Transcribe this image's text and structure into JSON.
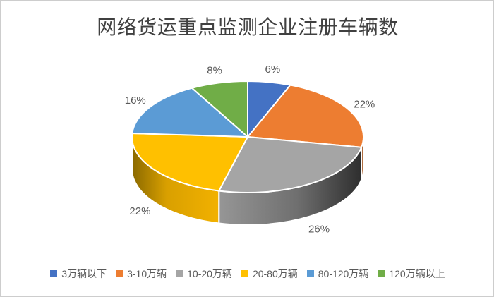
{
  "title": "网络货运重点监测企业注册车辆数",
  "colors": {
    "title_text": "#404040",
    "label_text": "#595959",
    "border": "#cdcdcd",
    "background": "#ffffff",
    "separator": "#ffffff"
  },
  "chart_data": {
    "type": "pie",
    "title": "网络货运重点监测企业注册车辆数",
    "unit": "percent",
    "effect_3d": true,
    "start_angle_deg": 0,
    "direction": "clockwise",
    "data_labels": "percent_outside",
    "legend_position": "bottom",
    "labels": [
      "3万辆以下",
      "3-10万辆",
      "10-20万辆",
      "20-80万辆",
      "80-120万辆",
      "120万辆以上"
    ],
    "values": [
      6,
      22,
      26,
      22,
      16,
      8
    ],
    "value_labels": [
      "6%",
      "22%",
      "26%",
      "22%",
      "16%",
      "8%"
    ],
    "colors": [
      "#4472C4",
      "#ED7D31",
      "#A5A5A5",
      "#FFC000",
      "#5B9BD5",
      "#70AD47"
    ],
    "side_gradients": [
      [
        [
          0,
          "#2E4E87"
        ],
        [
          1,
          "#2E4E87"
        ]
      ],
      [
        [
          0,
          "#B25A1E"
        ],
        [
          1,
          "#8E4715"
        ]
      ],
      [
        [
          0,
          "#969696"
        ],
        [
          0.55,
          "#6F6F6F"
        ],
        [
          1,
          "#2E2E2E"
        ]
      ],
      [
        [
          0,
          "#8A6900"
        ],
        [
          0.4,
          "#D9A000"
        ],
        [
          1,
          "#F2B100"
        ]
      ],
      [
        [
          0,
          "#3D74A8"
        ],
        [
          1,
          "#3D74A8"
        ]
      ],
      [
        [
          0,
          "#507C32"
        ],
        [
          1,
          "#507C32"
        ]
      ]
    ]
  }
}
